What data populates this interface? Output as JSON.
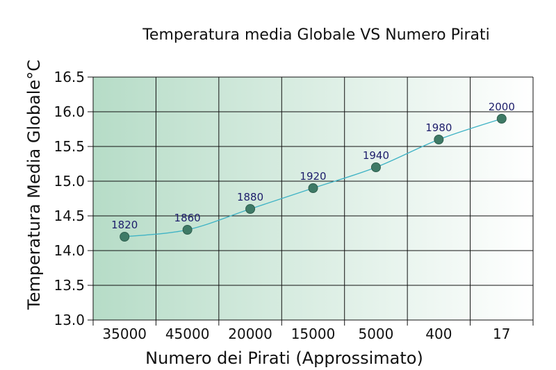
{
  "chart_data": {
    "type": "line",
    "title": "Temperatura media Globale VS Numero Pirati",
    "xlabel": "Numero dei Pirati (Approssimato)",
    "ylabel": "Temperatura Media Globale°C",
    "categories": [
      "35000",
      "45000",
      "20000",
      "15000",
      "5000",
      "400",
      "17"
    ],
    "values": [
      14.2,
      14.3,
      14.6,
      14.9,
      15.2,
      15.6,
      15.9
    ],
    "point_labels": [
      "1820",
      "1860",
      "1880",
      "1920",
      "1940",
      "1980",
      "2000"
    ],
    "yticks": [
      "13.0",
      "13.5",
      "14.0",
      "14.5",
      "15.0",
      "15.5",
      "16.0",
      "16.5"
    ],
    "ylim": [
      13.0,
      16.5
    ],
    "grid": true,
    "colors": {
      "line": "#3fb3c5",
      "marker": "#3e7a66",
      "marker_stroke": "#2e5e4e",
      "point_label": "#1d1d6b",
      "background_left": "#b6dcc7",
      "background_right": "#ffffff",
      "grid": "#111111"
    }
  }
}
